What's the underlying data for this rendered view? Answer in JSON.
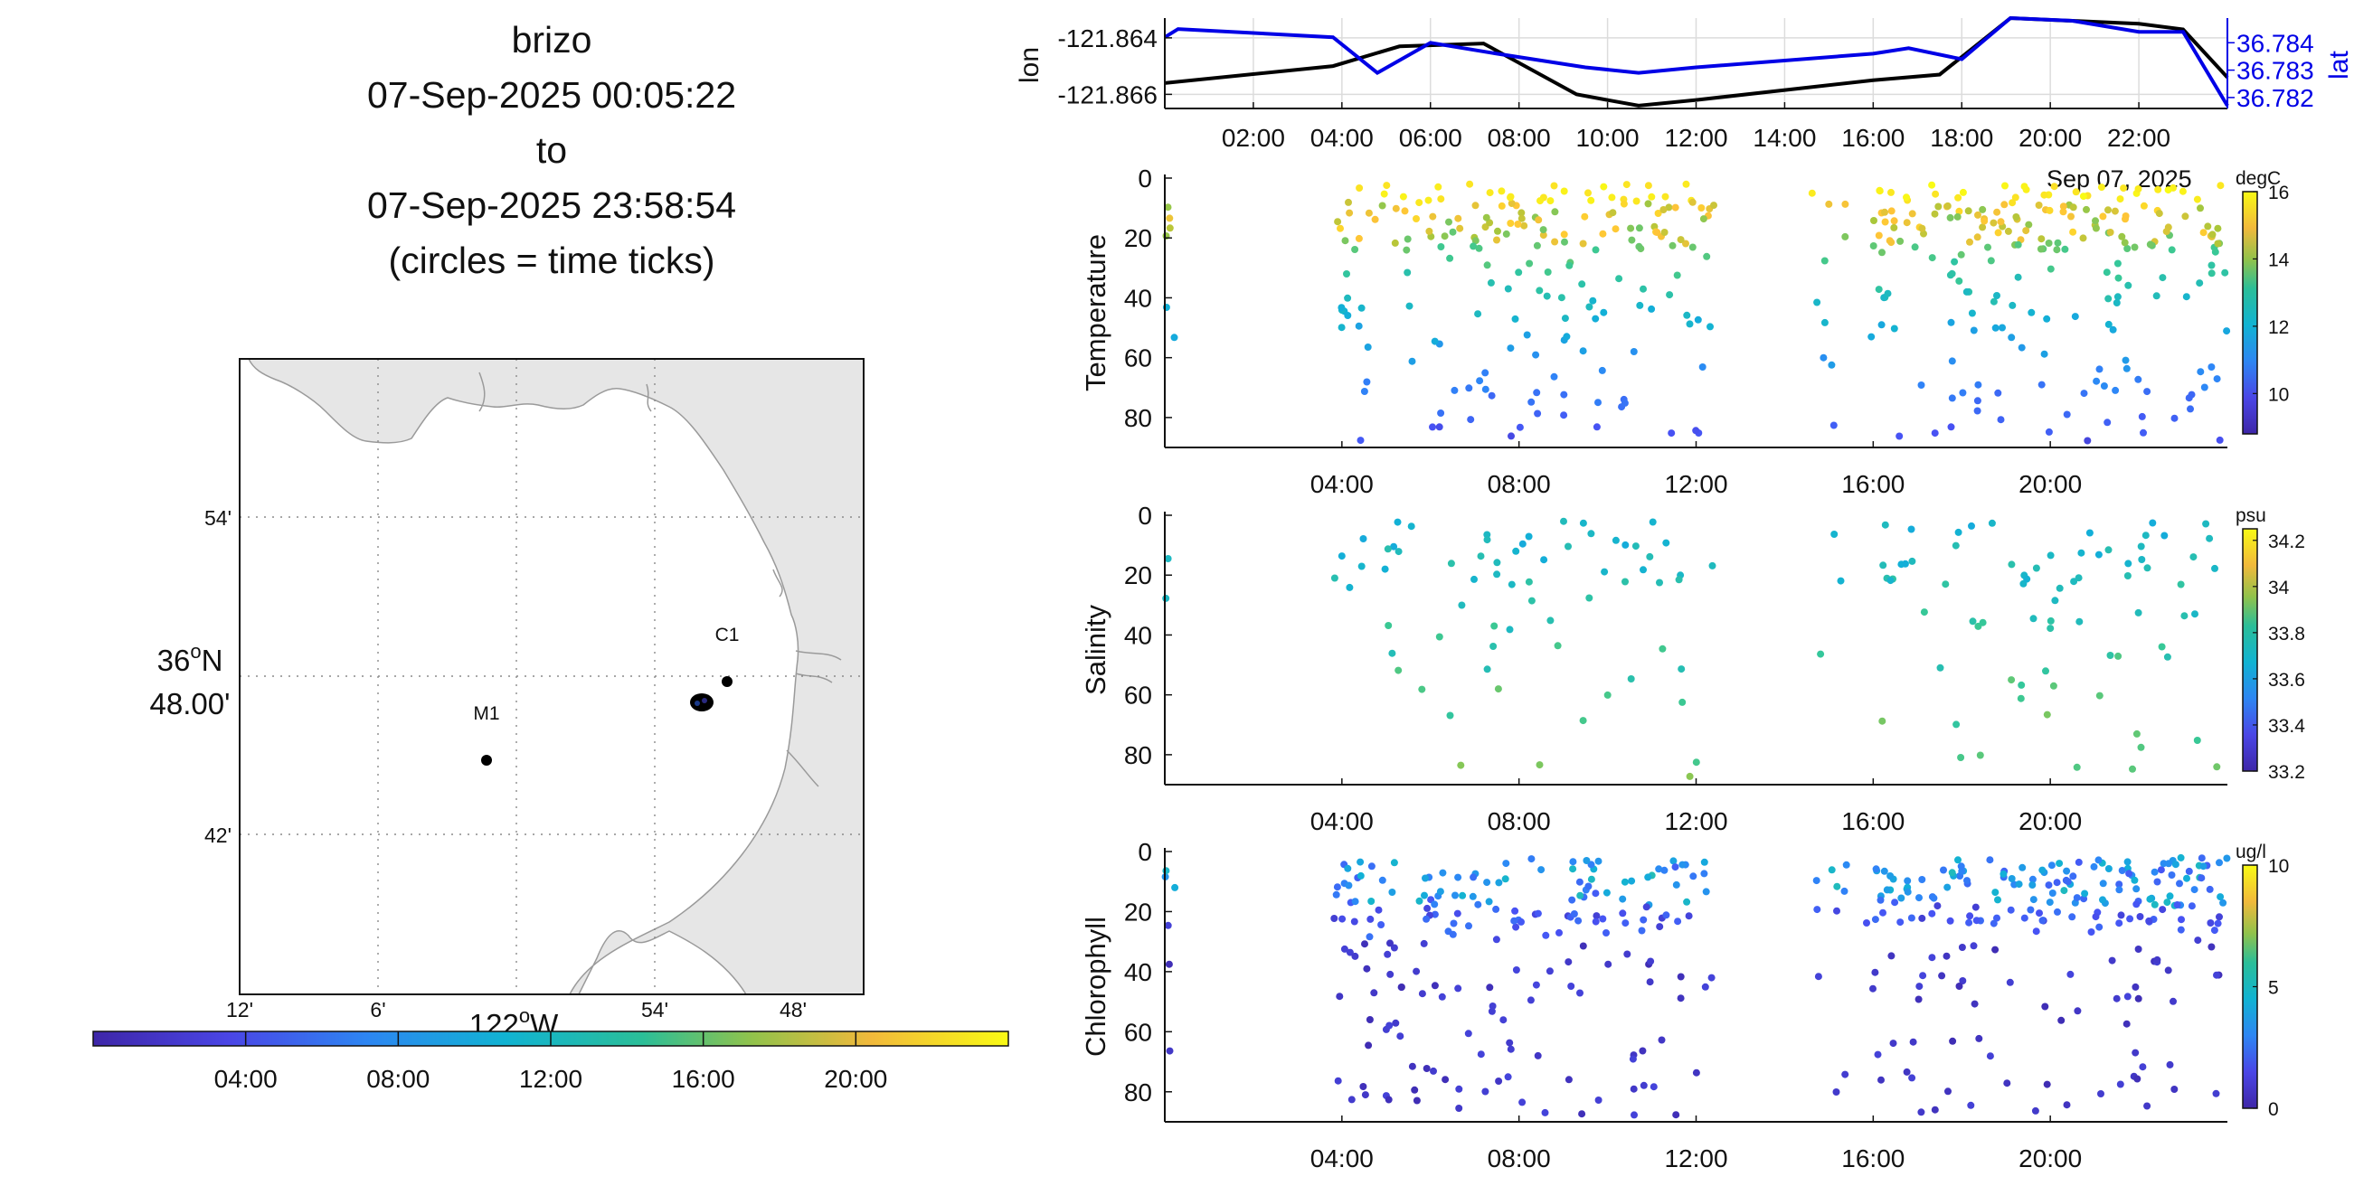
{
  "title": {
    "platform": "brizo",
    "start": "07-Sep-2025 00:05:22",
    "connector": "to",
    "end": "07-Sep-2025 23:58:54",
    "note": "(circles = time ticks)"
  },
  "map": {
    "lat_labels": [
      "54'",
      "36ºN 48.00'",
      "42'"
    ],
    "lat_label_main_deg": "36",
    "lat_label_main_hem": "N",
    "lat_label_main_min": "48.00'",
    "lon_labels": [
      "12'",
      "6'",
      "122ºW",
      "54'",
      "48'"
    ],
    "lon_label_main_deg": "122",
    "lon_label_main_hem": "W",
    "stations": [
      {
        "name": "M1"
      },
      {
        "name": "C1"
      }
    ],
    "colors": {
      "land": "#e6e6e6",
      "coast": "#9a9a9a"
    }
  },
  "time_colorbar": {
    "tick_labels": [
      "04:00",
      "08:00",
      "12:00",
      "16:00",
      "20:00"
    ]
  },
  "chart_data": [
    {
      "type": "line",
      "id": "track",
      "ylabel": "lon",
      "ylabel_right": "lat",
      "x_tick_labels": [
        "02:00",
        "04:00",
        "06:00",
        "08:00",
        "10:00",
        "12:00",
        "14:00",
        "16:00",
        "18:00",
        "20:00",
        "22:00"
      ],
      "date_label": "Sep 07, 2025",
      "ylim": [
        -121.8665,
        -121.8633
      ],
      "ylim_right": [
        36.7816,
        36.7849
      ],
      "y_tick_labels": [
        "-121.864",
        "-121.866"
      ],
      "y_tick_labels_right": [
        "36.784",
        "36.783",
        "36.782"
      ],
      "series": [
        {
          "name": "lon",
          "color": "#000000",
          "x_hours": [
            0.0,
            3.8,
            5.3,
            7.2,
            9.3,
            10.7,
            12.0,
            16.0,
            17.5,
            19.1,
            22.0,
            23.0,
            24.0
          ],
          "values": [
            -121.8656,
            -121.865,
            -121.8643,
            -121.8642,
            -121.866,
            -121.8664,
            -121.8662,
            -121.8655,
            -121.8653,
            -121.8633,
            -121.8635,
            -121.8637,
            -121.8654
          ]
        },
        {
          "name": "lat",
          "color": "#0000e6",
          "x_hours": [
            0.0,
            0.3,
            3.8,
            4.8,
            6.0,
            7.5,
            9.5,
            10.7,
            12.0,
            16.0,
            16.8,
            18.0,
            19.1,
            20.5,
            22.0,
            23.0,
            24.0
          ],
          "values": [
            36.7842,
            36.7845,
            36.7842,
            36.7829,
            36.784,
            36.7836,
            36.7831,
            36.7829,
            36.7831,
            36.7836,
            36.7838,
            36.7834,
            36.7849,
            36.7848,
            36.7844,
            36.7844,
            36.7817
          ]
        }
      ]
    },
    {
      "type": "scatter",
      "id": "temperature",
      "ylabel": "Temperature",
      "unit": "degC",
      "ylim": [
        0,
        90
      ],
      "clim": [
        8.8,
        16
      ],
      "colorbar_ticks": [
        "16",
        "14",
        "12",
        "10"
      ],
      "colorbar_tick_values": [
        16,
        14,
        12,
        10
      ],
      "y_tick_labels": [
        "0",
        "20",
        "40",
        "60",
        "80"
      ],
      "x_tick_labels": [
        "04:00",
        "08:00",
        "12:00",
        "16:00",
        "20:00"
      ]
    },
    {
      "type": "scatter",
      "id": "salinity",
      "ylabel": "Salinity",
      "unit": "psu",
      "ylim": [
        0,
        90
      ],
      "clim": [
        33.2,
        34.25
      ],
      "colorbar_ticks": [
        "34.2",
        "34",
        "33.8",
        "33.6",
        "33.4",
        "33.2"
      ],
      "colorbar_tick_values": [
        34.2,
        34.0,
        33.8,
        33.6,
        33.4,
        33.2
      ],
      "y_tick_labels": [
        "0",
        "20",
        "40",
        "60",
        "80"
      ],
      "x_tick_labels": [
        "04:00",
        "08:00",
        "12:00",
        "16:00",
        "20:00"
      ]
    },
    {
      "type": "scatter",
      "id": "chlorophyll",
      "ylabel": "Chlorophyll",
      "unit": "ug/l",
      "ylim": [
        0,
        90
      ],
      "clim": [
        0,
        10
      ],
      "colorbar_ticks": [
        "10",
        "5",
        "0"
      ],
      "colorbar_tick_values": [
        10,
        5,
        0
      ],
      "y_tick_labels": [
        "0",
        "20",
        "40",
        "60",
        "80"
      ],
      "x_tick_labels": [
        "04:00",
        "08:00",
        "12:00",
        "16:00",
        "20:00"
      ]
    }
  ]
}
